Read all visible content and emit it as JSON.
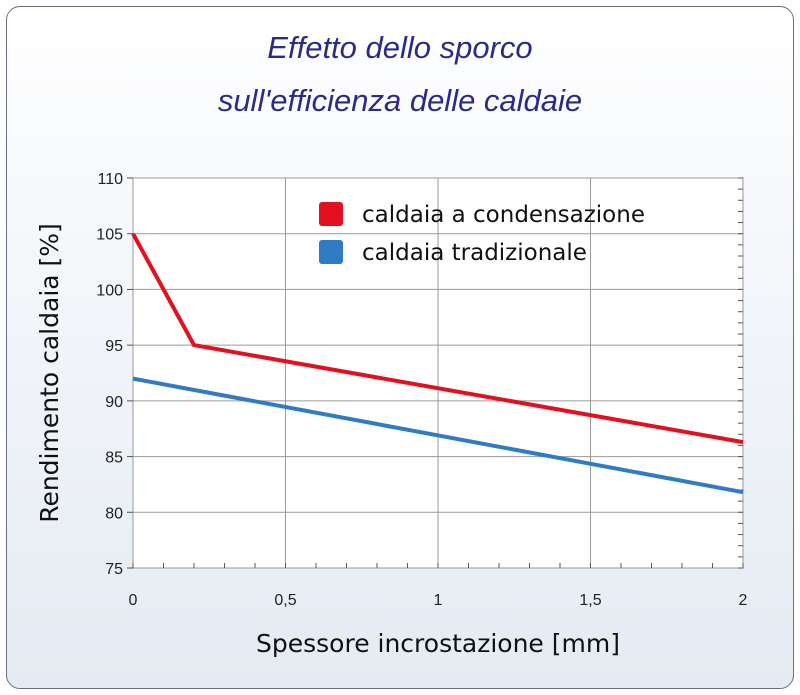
{
  "chart_data": {
    "type": "line",
    "title_lines": [
      "Effetto dello sporco",
      "sull'efficienza delle caldaie"
    ],
    "xlabel": "Spessore incrostazione [mm]",
    "ylabel": "Rendimento caldaia [%]",
    "xlim": [
      0,
      2
    ],
    "ylim": [
      75,
      110
    ],
    "xticks": [
      0,
      0.5,
      1,
      1.5,
      2
    ],
    "xtick_labels": [
      "0",
      "0,5",
      "1",
      "1,5",
      "2"
    ],
    "yticks": [
      75,
      80,
      85,
      90,
      95,
      100,
      105,
      110
    ],
    "ytick_labels": [
      "75",
      "80",
      "85",
      "90",
      "95",
      "100",
      "105",
      "110"
    ],
    "grid": true,
    "legend_position": "top-right",
    "series": [
      {
        "name": "caldaia a condensazione",
        "color": "#e3101f",
        "x": [
          0,
          0.2,
          2
        ],
        "y": [
          105,
          95,
          86.3
        ]
      },
      {
        "name": "caldaia tradizionale",
        "color": "#2f7cc4",
        "x": [
          0,
          2
        ],
        "y": [
          92,
          81.8
        ]
      }
    ]
  }
}
